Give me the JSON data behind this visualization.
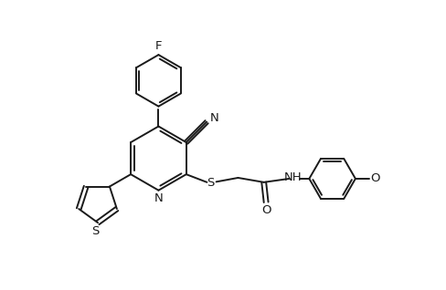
{
  "bg_color": "#ffffff",
  "line_color": "#1a1a1a",
  "line_width": 1.4,
  "font_size": 9.5,
  "fig_width": 4.88,
  "fig_height": 3.18,
  "dpi": 100,
  "xlim": [
    0,
    10
  ],
  "ylim": [
    0,
    6.5
  ]
}
